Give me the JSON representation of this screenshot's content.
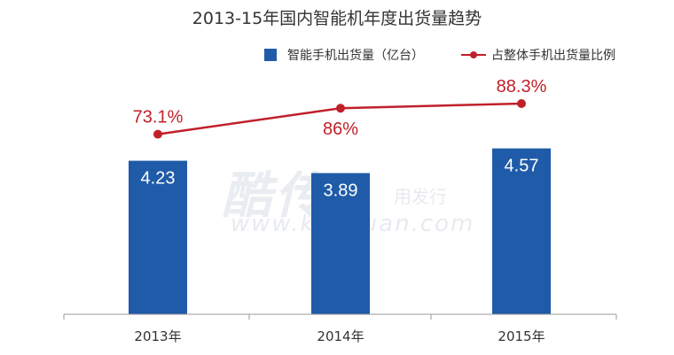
{
  "chart_data": {
    "type": "bar",
    "title": "2013-15年国内智能机年度出货量趋势",
    "categories": [
      "2013年",
      "2014年",
      "2015年"
    ],
    "series": [
      {
        "name": "智能手机出货量（亿台）",
        "type": "bar",
        "values": [
          4.23,
          3.89,
          4.57
        ],
        "color": "#1f5ba8"
      },
      {
        "name": "占整体手机出货量比例",
        "type": "line",
        "values": [
          73.1,
          86,
          88.3
        ],
        "labels": [
          "73.1%",
          "86%",
          "88.3%"
        ],
        "color": "#c0202a"
      }
    ],
    "grid": false,
    "legend": "top-right"
  },
  "watermark": {
    "brand": "酷传",
    "side_text": "用发行",
    "url": "www.kuchuan.com"
  }
}
